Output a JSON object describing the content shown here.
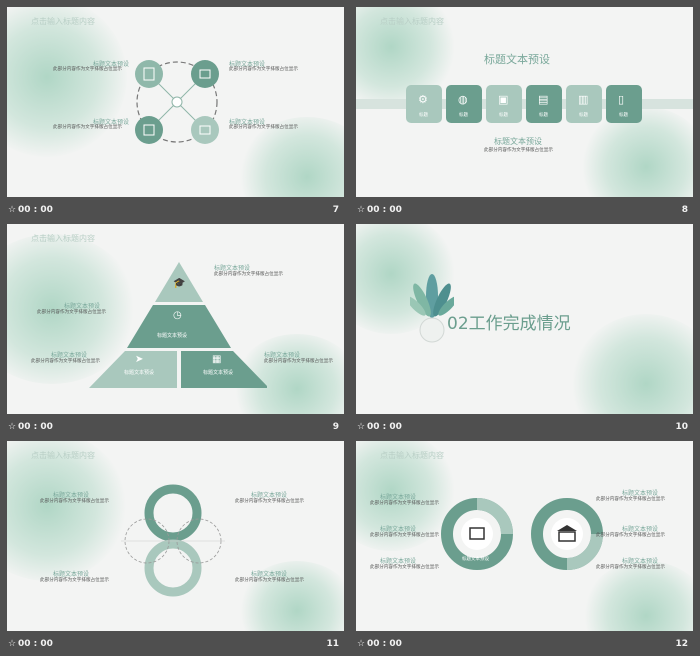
{
  "colors": {
    "accent": "#6b9e8e",
    "accent_light": "#a9c8bd",
    "dark": "#4f4f4f"
  },
  "icons": {
    "timer": "stopwatch-icon"
  },
  "slides": [
    {
      "number": "7",
      "time": "00 : 00",
      "header": "点击输入标题内容",
      "items": [
        {
          "title": "标题文本预设",
          "desc": "此部分内容作为文字排版占位显示"
        },
        {
          "title": "标题文本预设",
          "desc": "此部分内容作为文字排版占位显示"
        },
        {
          "title": "标题文本预设",
          "desc": "此部分内容作为文字排版占位显示"
        },
        {
          "title": "标题文本预设",
          "desc": "此部分内容作为文字排版占位显示"
        }
      ]
    },
    {
      "number": "8",
      "time": "00 : 00",
      "header": "点击输入标题内容",
      "title": "标题文本预设",
      "subtitle": "标题文本预设",
      "desc": "此部分内容作为文字排版占位显示",
      "tiles": [
        "标题",
        "标题",
        "标题",
        "标题",
        "标题",
        "标题"
      ]
    },
    {
      "number": "9",
      "time": "00 : 00",
      "header": "点击输入标题内容",
      "levels": [
        "标题文本预设",
        "标题文本预设",
        "标题文本预设"
      ],
      "items": [
        {
          "title": "标题文本预设",
          "desc": "此部分内容作为文字排版占位显示"
        },
        {
          "title": "标题文本预设",
          "desc": "此部分内容作为文字排版占位显示"
        },
        {
          "title": "标题文本预设",
          "desc": "此部分内容作为文字排版占位显示"
        },
        {
          "title": "标题文本预设",
          "desc": "此部分内容作为文字排版占位显示"
        }
      ]
    },
    {
      "number": "10",
      "time": "00 : 00",
      "section": "02工作完成情况"
    },
    {
      "number": "11",
      "time": "00 : 00",
      "header": "点击输入标题内容",
      "items": [
        {
          "title": "标题文本预设",
          "desc": "此部分内容作为文字排版占位显示"
        },
        {
          "title": "标题文本预设",
          "desc": "此部分内容作为文字排版占位显示"
        },
        {
          "title": "标题文本预设",
          "desc": "此部分内容作为文字排版占位显示"
        },
        {
          "title": "标题文本预设",
          "desc": "此部分内容作为文字排版占位显示"
        }
      ]
    },
    {
      "number": "12",
      "time": "00 : 00",
      "header": "点击输入标题内容",
      "ring_label": "标题文本预设",
      "items": [
        {
          "title": "标题文本预设",
          "desc": "此部分内容作为文字排版占位显示"
        },
        {
          "title": "标题文本预设",
          "desc": "此部分内容作为文字排版占位显示"
        },
        {
          "title": "标题文本预设",
          "desc": "此部分内容作为文字排版占位显示"
        },
        {
          "title": "标题文本预设",
          "desc": "此部分内容作为文字排版占位显示"
        },
        {
          "title": "标题文本预设",
          "desc": "此部分内容作为文字排版占位显示"
        },
        {
          "title": "标题文本预设",
          "desc": "此部分内容作为文字排版占位显示"
        }
      ]
    }
  ]
}
